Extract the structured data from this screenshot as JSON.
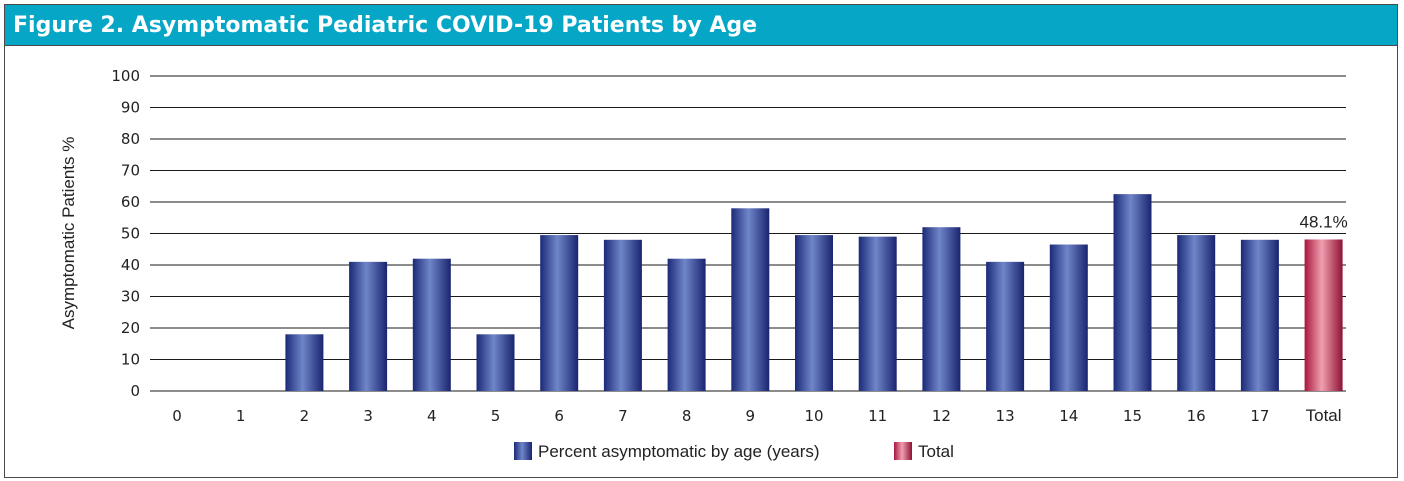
{
  "chart_data": {
    "type": "bar",
    "title": "Figure 2. Asymptomatic Pediatric COVID-19 Patients by Age",
    "xlabel": "",
    "ylabel": "Asymptomatic Patients %",
    "ylim": [
      0,
      100
    ],
    "yticks": [
      "0",
      "10",
      "20",
      "30",
      "40",
      "50",
      "60",
      "70",
      "80",
      "90",
      "100"
    ],
    "grid": true,
    "categories": [
      "0",
      "1",
      "2",
      "3",
      "4",
      "5",
      "6",
      "7",
      "8",
      "9",
      "10",
      "11",
      "12",
      "13",
      "14",
      "15",
      "16",
      "17",
      "Total"
    ],
    "series": [
      {
        "name": "Percent asymptomatic by age (years)",
        "color": "#2b3a8c",
        "values": [
          0,
          0,
          18,
          41,
          42,
          18,
          49.5,
          48,
          42,
          58,
          49.5,
          49,
          52,
          41,
          46.5,
          62.5,
          49.5,
          48,
          null
        ]
      },
      {
        "name": "Total",
        "color": "#b5234a",
        "values": [
          null,
          null,
          null,
          null,
          null,
          null,
          null,
          null,
          null,
          null,
          null,
          null,
          null,
          null,
          null,
          null,
          null,
          null,
          48.1
        ]
      }
    ],
    "data_labels": [
      {
        "category": "Total",
        "text": "48.1%"
      }
    ],
    "legend_position": "bottom-center"
  }
}
